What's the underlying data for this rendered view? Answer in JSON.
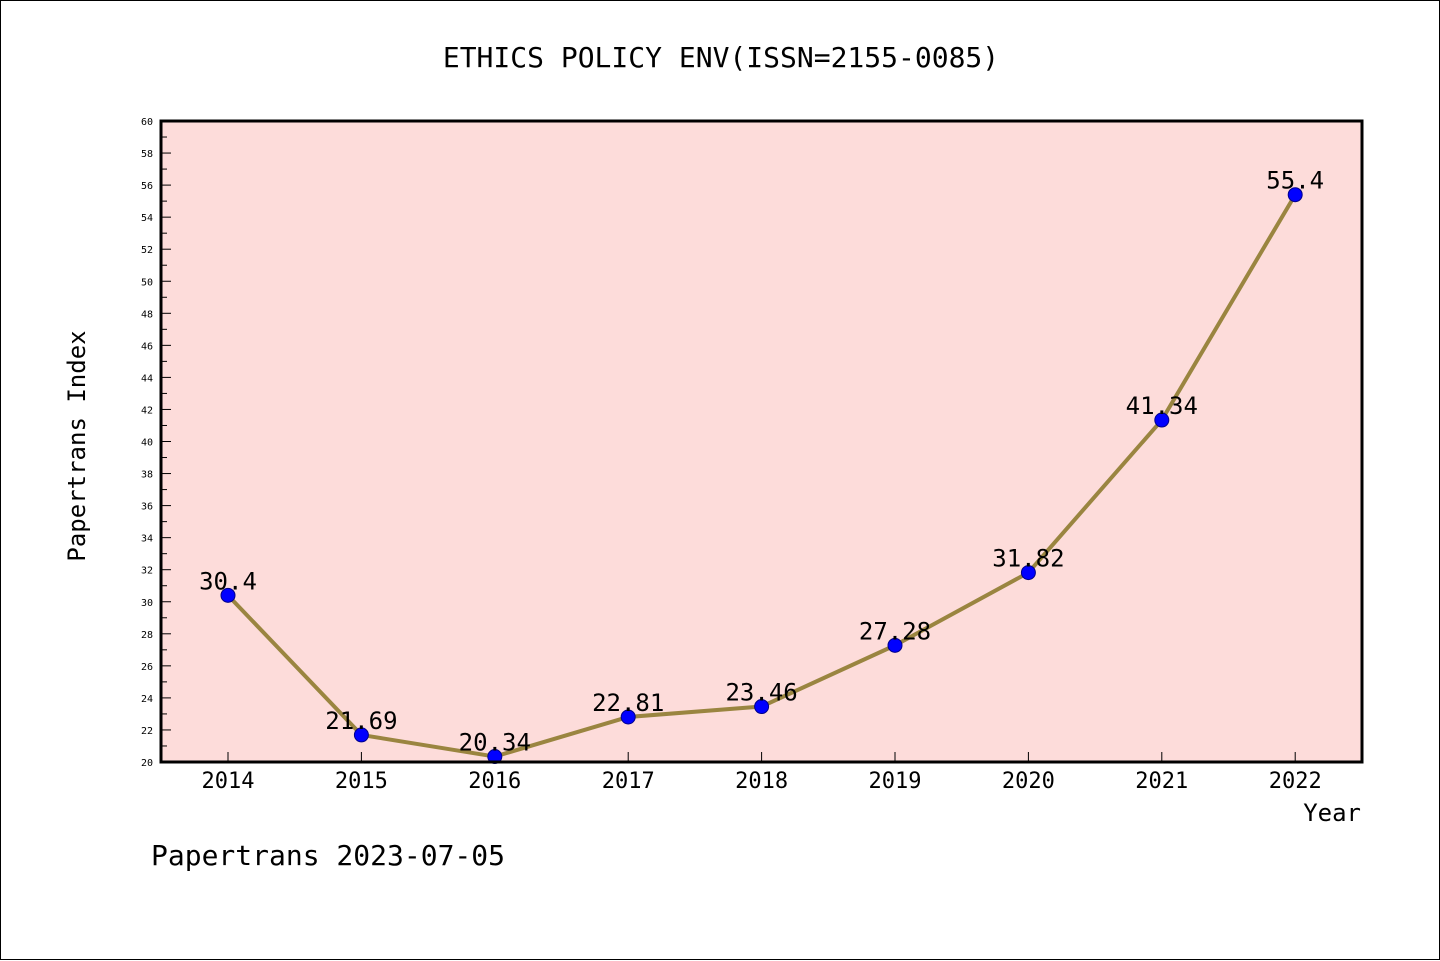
{
  "chart_data": {
    "type": "line",
    "title": "ETHICS POLICY ENV(ISSN=2155-0085)",
    "xlabel": "Year",
    "ylabel": "Papertrans Index",
    "x": [
      "2014",
      "2015",
      "2016",
      "2017",
      "2018",
      "2019",
      "2020",
      "2021",
      "2022"
    ],
    "series": [
      {
        "values": [
          30.4,
          21.69,
          20.34,
          22.81,
          23.46,
          27.28,
          31.82,
          41.34,
          55.4
        ],
        "labels": [
          "30.4",
          "21.69",
          "20.34",
          "22.81",
          "23.46",
          "27.28",
          "31.82",
          "41.34",
          "55.4"
        ]
      }
    ],
    "ylim": [
      20,
      60
    ],
    "yticks": [
      20,
      22,
      24,
      26,
      28,
      30,
      32,
      34,
      36,
      38,
      40,
      42,
      44,
      46,
      48,
      50,
      52,
      54,
      56,
      58,
      60
    ],
    "grid": false,
    "colors": {
      "plot_background": "#fddcda",
      "line": "#9a8540",
      "marker": "#0000ff",
      "marker_edge": "#00008b"
    }
  },
  "footer": "Papertrans 2023-07-05"
}
